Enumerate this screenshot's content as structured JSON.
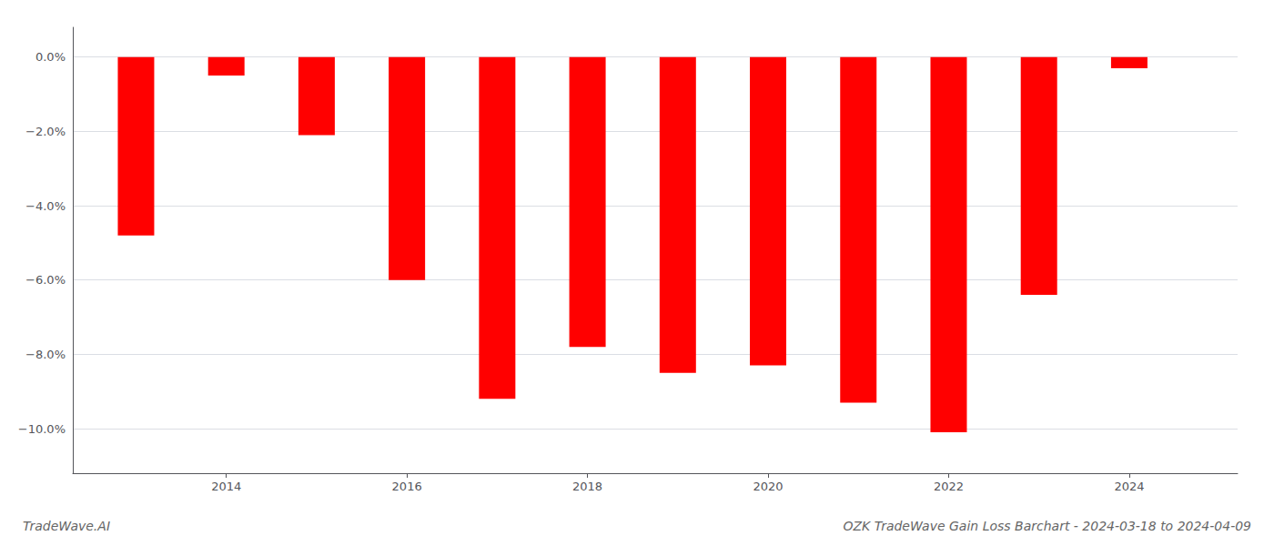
{
  "chart_data": {
    "type": "bar",
    "title": "OZK TradeWave Gain Loss Barchart - 2024-03-18 to 2024-04-09",
    "annotations": [
      "TradeWave.AI"
    ],
    "x": [
      2013,
      2014,
      2015,
      2016,
      2017,
      2018,
      2019,
      2020,
      2021,
      2022,
      2023,
      2024
    ],
    "values": [
      -4.8,
      -0.5,
      -2.1,
      -6.0,
      -9.2,
      -7.8,
      -8.5,
      -8.3,
      -9.3,
      -10.1,
      -6.4,
      -0.3
    ],
    "color": "#ff0000",
    "xlim": [
      2012.3,
      2025.2
    ],
    "xticks": [
      2014,
      2016,
      2018,
      2020,
      2022,
      2024
    ],
    "ylim": [
      -11.2,
      0.8
    ],
    "yticks": [
      {
        "value": 0.0,
        "label": "0.0%"
      },
      {
        "value": -2.0,
        "label": "−2.0%"
      },
      {
        "value": -4.0,
        "label": "−4.0%"
      },
      {
        "value": -6.0,
        "label": "−6.0%"
      },
      {
        "value": -8.0,
        "label": "−8.0%"
      },
      {
        "value": -10.0,
        "label": "−10.0%"
      }
    ],
    "grid": true
  }
}
